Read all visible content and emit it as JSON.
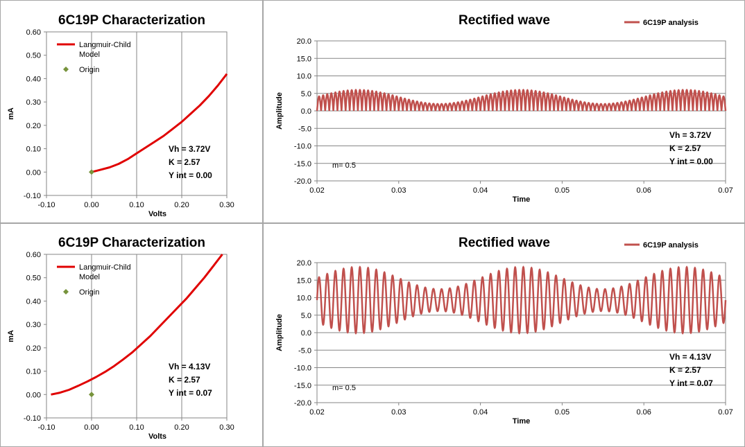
{
  "colors": {
    "curve_red": "#e00000",
    "wave_red": "#c0504d",
    "origin_marker": "#77933c",
    "grid": "#868686",
    "border": "#a6a6a6"
  },
  "chart_data": [
    {
      "id": "char-top",
      "type": "line",
      "title": "6C19P Characterization",
      "xlabel": "Volts",
      "ylabel": "mA",
      "xlim": [
        -0.1,
        0.3
      ],
      "ylim": [
        -0.1,
        0.6
      ],
      "xticks": [
        "-0.10",
        "0.00",
        "0.10",
        "0.20",
        "0.30"
      ],
      "yticks": [
        "-0.10",
        "0.00",
        "0.10",
        "0.20",
        "0.30",
        "0.40",
        "0.50",
        "0.60"
      ],
      "grid": "vertical",
      "legend_position": "top-left",
      "series": [
        {
          "name": "Langmuir-Child Model",
          "color": "#e00000",
          "x": [
            0.0,
            0.02,
            0.04,
            0.06,
            0.08,
            0.1,
            0.12,
            0.14,
            0.16,
            0.18,
            0.2,
            0.22,
            0.24,
            0.26,
            0.28,
            0.3
          ],
          "y": [
            0.0,
            0.01,
            0.02,
            0.035,
            0.055,
            0.08,
            0.105,
            0.13,
            0.155,
            0.185,
            0.215,
            0.25,
            0.285,
            0.325,
            0.37,
            0.42
          ]
        },
        {
          "name": "Origin",
          "marker": "diamond",
          "color": "#77933c",
          "x": [
            0.0
          ],
          "y": [
            0.0
          ]
        }
      ],
      "annotations": [
        "Vh = 3.72V",
        "K = 2.57",
        "Y int = 0.00"
      ]
    },
    {
      "id": "wave-top",
      "type": "line",
      "title": "Rectified wave",
      "xlabel": "Time",
      "ylabel": "Amplitude",
      "xlim": [
        0.02,
        0.07
      ],
      "ylim": [
        -20,
        20
      ],
      "xticks": [
        "0.02",
        "0.03",
        "0.04",
        "0.05",
        "0.06",
        "0.07"
      ],
      "yticks": [
        "20.0",
        "15.0",
        "10.0",
        "5.0",
        "0.0",
        "-5.0",
        "-10.0",
        "-15.0",
        "-20.0"
      ],
      "grid": "horizontal",
      "legend_position": "top-right",
      "series": [
        {
          "name": "6C19P analysis",
          "color": "#c0504d",
          "envelope": {
            "offset": 0,
            "center": 4,
            "depth": 0.5,
            "mod_period": 0.02,
            "mod_peak_at": 0.025,
            "carrier_freq": 1000,
            "rectified": true
          }
        }
      ],
      "annotations": [
        "Vh = 3.72V",
        "K = 2.57",
        "Y int = 0.00",
        "m= 0.5"
      ]
    },
    {
      "id": "char-bottom",
      "type": "line",
      "title": "6C19P Characterization",
      "xlabel": "Volts",
      "ylabel": "mA",
      "xlim": [
        -0.1,
        0.3
      ],
      "ylim": [
        -0.1,
        0.6
      ],
      "xticks": [
        "-0.10",
        "0.00",
        "0.10",
        "0.20",
        "0.30"
      ],
      "yticks": [
        "-0.10",
        "0.00",
        "0.10",
        "0.20",
        "0.30",
        "0.40",
        "0.50",
        "0.60"
      ],
      "grid": "vertical",
      "legend_position": "top-left",
      "series": [
        {
          "name": "Langmuir-Child Model",
          "color": "#e00000",
          "x": [
            -0.09,
            -0.07,
            -0.05,
            -0.03,
            -0.01,
            0.01,
            0.03,
            0.05,
            0.07,
            0.09,
            0.11,
            0.13,
            0.15,
            0.17,
            0.19,
            0.21,
            0.23,
            0.25,
            0.27,
            0.29
          ],
          "y": [
            0.0,
            0.008,
            0.02,
            0.037,
            0.055,
            0.075,
            0.097,
            0.122,
            0.15,
            0.18,
            0.215,
            0.25,
            0.29,
            0.33,
            0.37,
            0.41,
            0.455,
            0.5,
            0.55,
            0.6
          ]
        },
        {
          "name": "Origin",
          "marker": "diamond",
          "color": "#77933c",
          "x": [
            0.0
          ],
          "y": [
            0.0
          ]
        }
      ],
      "annotations": [
        "Vh = 4.13V",
        "K = 2.57",
        "Y int = 0.07"
      ]
    },
    {
      "id": "wave-bottom",
      "type": "line",
      "title": "Rectified wave",
      "xlabel": "Time",
      "ylabel": "Amplitude",
      "xlim": [
        0.02,
        0.07
      ],
      "ylim": [
        -20,
        20
      ],
      "xticks": [
        "0.02",
        "0.03",
        "0.04",
        "0.05",
        "0.06",
        "0.07"
      ],
      "yticks": [
        "20.0",
        "15.0",
        "10.0",
        "5.0",
        "0.0",
        "-5.0",
        "-10.0",
        "-15.0",
        "-20.0"
      ],
      "grid": "horizontal",
      "legend_position": "top-right",
      "series": [
        {
          "name": "6C19P analysis",
          "color": "#c0504d",
          "envelope": {
            "offset": 9.3,
            "center": 6.3,
            "depth": 0.5,
            "mod_period": 0.02,
            "mod_peak_at": 0.025,
            "carrier_freq": 1000,
            "rectified": false
          }
        }
      ],
      "annotations": [
        "Vh = 4.13V",
        "K = 2.57",
        "Y int = 0.07",
        "m= 0.5"
      ]
    }
  ]
}
